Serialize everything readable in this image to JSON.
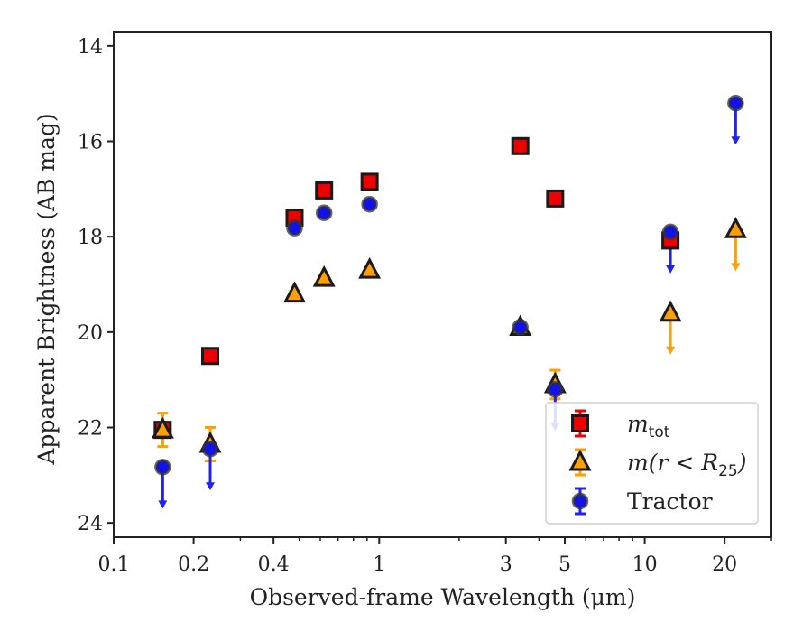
{
  "chart_data": {
    "type": "scatter",
    "title": "",
    "xlabel": "Observed-frame Wavelength (μm)",
    "ylabel": "Apparent Brightness (AB mag)",
    "xscale": "log",
    "xlim": [
      0.1,
      30
    ],
    "ylim": [
      24.3,
      13.7
    ],
    "y_inverted": true,
    "x_ticks": [
      {
        "value": 0.1,
        "label": "0.1"
      },
      {
        "value": 0.2,
        "label": "0.2"
      },
      {
        "value": 0.4,
        "label": "0.4"
      },
      {
        "value": 1,
        "label": "1"
      },
      {
        "value": 3,
        "label": "3"
      },
      {
        "value": 5,
        "label": "5"
      },
      {
        "value": 10,
        "label": "10"
      },
      {
        "value": 20,
        "label": "20"
      }
    ],
    "x_minor_ticks": [
      0.3,
      0.5,
      0.6,
      0.7,
      0.8,
      0.9,
      2,
      4,
      6,
      7,
      8,
      9,
      30
    ],
    "y_ticks": [
      {
        "value": 14,
        "label": "14"
      },
      {
        "value": 16,
        "label": "16"
      },
      {
        "value": 18,
        "label": "18"
      },
      {
        "value": 20,
        "label": "20"
      },
      {
        "value": 22,
        "label": "22"
      },
      {
        "value": 24,
        "label": "24"
      }
    ],
    "grid": false,
    "legend_position": "bottom-right",
    "series": [
      {
        "name": "m_tot",
        "marker": "square",
        "color": "#ee0000",
        "errcolor": "#ee0000",
        "points": [
          {
            "x": 0.153,
            "y": 22.05,
            "err": 0.1
          },
          {
            "x": 0.231,
            "y": 20.5,
            "err": 0.05
          },
          {
            "x": 0.48,
            "y": 17.6,
            "err": 0.1
          },
          {
            "x": 0.62,
            "y": 17.03,
            "err": 0.05
          },
          {
            "x": 0.92,
            "y": 16.85,
            "err": 0.05
          },
          {
            "x": 3.4,
            "y": 16.1,
            "err": 0.05
          },
          {
            "x": 4.6,
            "y": 17.2,
            "err": 0.05
          },
          {
            "x": 12.5,
            "y": 18.08,
            "err": 0.05
          }
        ]
      },
      {
        "name": "m(r < R25)",
        "marker": "triangle",
        "color": "#ff9f00",
        "errcolor": "#ff9f00",
        "points": [
          {
            "x": 0.153,
            "y": 22.05,
            "err": 0.35
          },
          {
            "x": 0.231,
            "y": 22.35,
            "err": 0.35
          },
          {
            "x": 0.48,
            "y": 19.2,
            "err": 0.05
          },
          {
            "x": 0.62,
            "y": 18.87,
            "err": 0.05
          },
          {
            "x": 0.92,
            "y": 18.7,
            "err": 0.05
          },
          {
            "x": 3.4,
            "y": 19.9,
            "err": 0.05
          },
          {
            "x": 4.6,
            "y": 21.1,
            "err": 0.3
          },
          {
            "x": 12.5,
            "y": 19.6,
            "upper_limit": true
          },
          {
            "x": 22,
            "y": 17.85,
            "upper_limit": true
          }
        ]
      },
      {
        "name": "Tractor",
        "marker": "circle",
        "color": "#1111ee",
        "errcolor": "#2222ee",
        "points": [
          {
            "x": 0.153,
            "y": 22.83,
            "upper_limit": true
          },
          {
            "x": 0.231,
            "y": 22.45,
            "upper_limit": true
          },
          {
            "x": 0.48,
            "y": 17.82,
            "err": 0.05
          },
          {
            "x": 0.62,
            "y": 17.5,
            "err": 0.05
          },
          {
            "x": 0.92,
            "y": 17.32,
            "err": 0.05
          },
          {
            "x": 3.4,
            "y": 19.9,
            "err": 0.05
          },
          {
            "x": 4.6,
            "y": 21.2,
            "upper_limit": true
          },
          {
            "x": 12.5,
            "y": 17.9,
            "upper_limit": true
          },
          {
            "x": 22,
            "y": 15.2,
            "upper_limit": true
          }
        ]
      }
    ],
    "legend": {
      "entries": [
        {
          "main": "m",
          "sub": "tot",
          "rest": ""
        },
        {
          "main": "m(r < R",
          "sub": "25",
          "rest": ")"
        },
        {
          "main": "Tractor",
          "sub": "",
          "rest": ""
        }
      ]
    }
  }
}
